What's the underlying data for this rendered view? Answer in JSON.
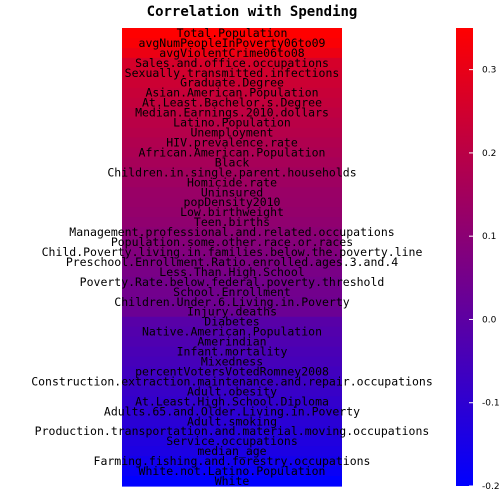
{
  "chart_data": {
    "type": "heatmap",
    "title": "Correlation with Spending",
    "rows": [
      {
        "label": "Total.Population",
        "value": 0.35
      },
      {
        "label": "avgNumPeopleInPoverty06to09",
        "value": 0.34
      },
      {
        "label": "avgViolentCrime06to08",
        "value": 0.31
      },
      {
        "label": "Sales.and.office.occupations",
        "value": 0.26
      },
      {
        "label": "Sexually.transmitted.infections",
        "value": 0.25
      },
      {
        "label": "Graduate.Degree",
        "value": 0.24
      },
      {
        "label": "Asian.American.Population",
        "value": 0.23
      },
      {
        "label": "At.Least.Bachelor.s.Degree",
        "value": 0.22
      },
      {
        "label": "Median.Earnings.2010.dollars",
        "value": 0.21
      },
      {
        "label": "Latino.Population",
        "value": 0.2
      },
      {
        "label": "Unemployment",
        "value": 0.19
      },
      {
        "label": "HIV.prevalence.rate",
        "value": 0.18
      },
      {
        "label": "African.American.Population",
        "value": 0.17
      },
      {
        "label": "Black",
        "value": 0.16
      },
      {
        "label": "Children.in.single.parent.households",
        "value": 0.15
      },
      {
        "label": "Homicide.rate",
        "value": 0.14
      },
      {
        "label": "Uninsured",
        "value": 0.13
      },
      {
        "label": "popDensity2010",
        "value": 0.125
      },
      {
        "label": "Low.birthweight",
        "value": 0.12
      },
      {
        "label": "Teen.births",
        "value": 0.11
      },
      {
        "label": "Management.professional.and.related.occupations",
        "value": 0.1
      },
      {
        "label": "Population.some.other.race.or.races",
        "value": 0.09
      },
      {
        "label": "Child.Poverty.living.in.families.below.the.poverty.line",
        "value": 0.08
      },
      {
        "label": "Preschool.Enrollment.Ratio.enrolled.ages.3.and.4",
        "value": 0.07
      },
      {
        "label": "Less.Than.High.School",
        "value": 0.06
      },
      {
        "label": "Poverty.Rate.below.federal.poverty.threshold",
        "value": 0.05
      },
      {
        "label": "School.Enrollment",
        "value": 0.045
      },
      {
        "label": "Children.Under.6.Living.in.Poverty",
        "value": 0.04
      },
      {
        "label": "Injury.deaths",
        "value": 0.03
      },
      {
        "label": "Diabetes",
        "value": -0.01
      },
      {
        "label": "Native.American.Population",
        "value": -0.02
      },
      {
        "label": "Amerindian",
        "value": -0.03
      },
      {
        "label": "Infant.mortality",
        "value": -0.04
      },
      {
        "label": "Mixedness",
        "value": -0.05
      },
      {
        "label": "percentVotersVotedRomney2008",
        "value": -0.06
      },
      {
        "label": "Construction.extraction.maintenance.and.repair.occupations",
        "value": -0.07
      },
      {
        "label": "Adult.obesity",
        "value": -0.08
      },
      {
        "label": "At.Least.High.School.Diploma",
        "value": -0.09
      },
      {
        "label": "Adults.65.and.Older.Living.in.Poverty",
        "value": -0.1
      },
      {
        "label": "Adult.smoking",
        "value": -0.11
      },
      {
        "label": "Production.transportation.and.material.moving.occupations",
        "value": -0.12
      },
      {
        "label": "Service.occupations",
        "value": -0.13
      },
      {
        "label": "median_age",
        "value": -0.14
      },
      {
        "label": "Farming.fishing.and.forestry.occupations",
        "value": -0.16
      },
      {
        "label": "White.not.Latino.Population",
        "value": -0.18
      },
      {
        "label": "White",
        "value": -0.2
      }
    ],
    "colorbar": {
      "min": -0.2,
      "max": 0.35,
      "ticks": [
        0.3,
        0.2,
        0.1,
        0.0,
        -0.1,
        -0.2
      ],
      "tick_labels": [
        "0.3",
        "0.2",
        "0.1",
        "0.0",
        "-0.1",
        "-0.2"
      ],
      "low_color": "#0000ff",
      "high_color": "#ff0000"
    }
  }
}
